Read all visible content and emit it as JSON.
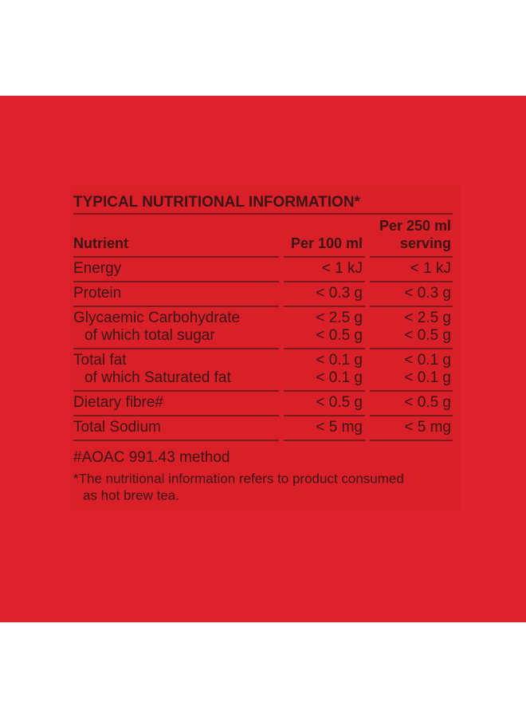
{
  "title": "TYPICAL NUTRITIONAL INFORMATION*",
  "table": {
    "header": {
      "nutrient": [
        "Nutrient"
      ],
      "per100": [
        "Per 100 ml"
      ],
      "per250": [
        "Per 250 ml",
        "serving"
      ]
    },
    "rows": [
      {
        "nutrient": [
          "Energy"
        ],
        "per100": [
          "< 1 kJ"
        ],
        "per250": [
          "< 1 kJ"
        ]
      },
      {
        "nutrient": [
          "Protein"
        ],
        "per100": [
          "< 0.3 g"
        ],
        "per250": [
          "< 0.3 g"
        ]
      },
      {
        "nutrient": [
          "Glycaemic Carbohydrate",
          "of which total sugar"
        ],
        "per100": [
          "< 2.5 g",
          "< 0.5 g"
        ],
        "per250": [
          "< 2.5 g",
          "< 0.5 g"
        ]
      },
      {
        "nutrient": [
          "Total fat",
          "of which Saturated fat"
        ],
        "per100": [
          "< 0.1 g",
          "< 0.1 g"
        ],
        "per250": [
          "< 0.1 g",
          "< 0.1 g"
        ]
      },
      {
        "nutrient": [
          "Dietary fibre#"
        ],
        "per100": [
          "< 0.5 g"
        ],
        "per250": [
          "< 0.5 g"
        ]
      },
      {
        "nutrient": [
          "Total Sodium"
        ],
        "per100": [
          "< 5 mg"
        ],
        "per250": [
          "< 5 mg"
        ]
      }
    ]
  },
  "footnotes": [
    "#AOAC 991.43 method",
    "*The nutritional information refers to product consumed",
    "as hot brew tea."
  ]
}
